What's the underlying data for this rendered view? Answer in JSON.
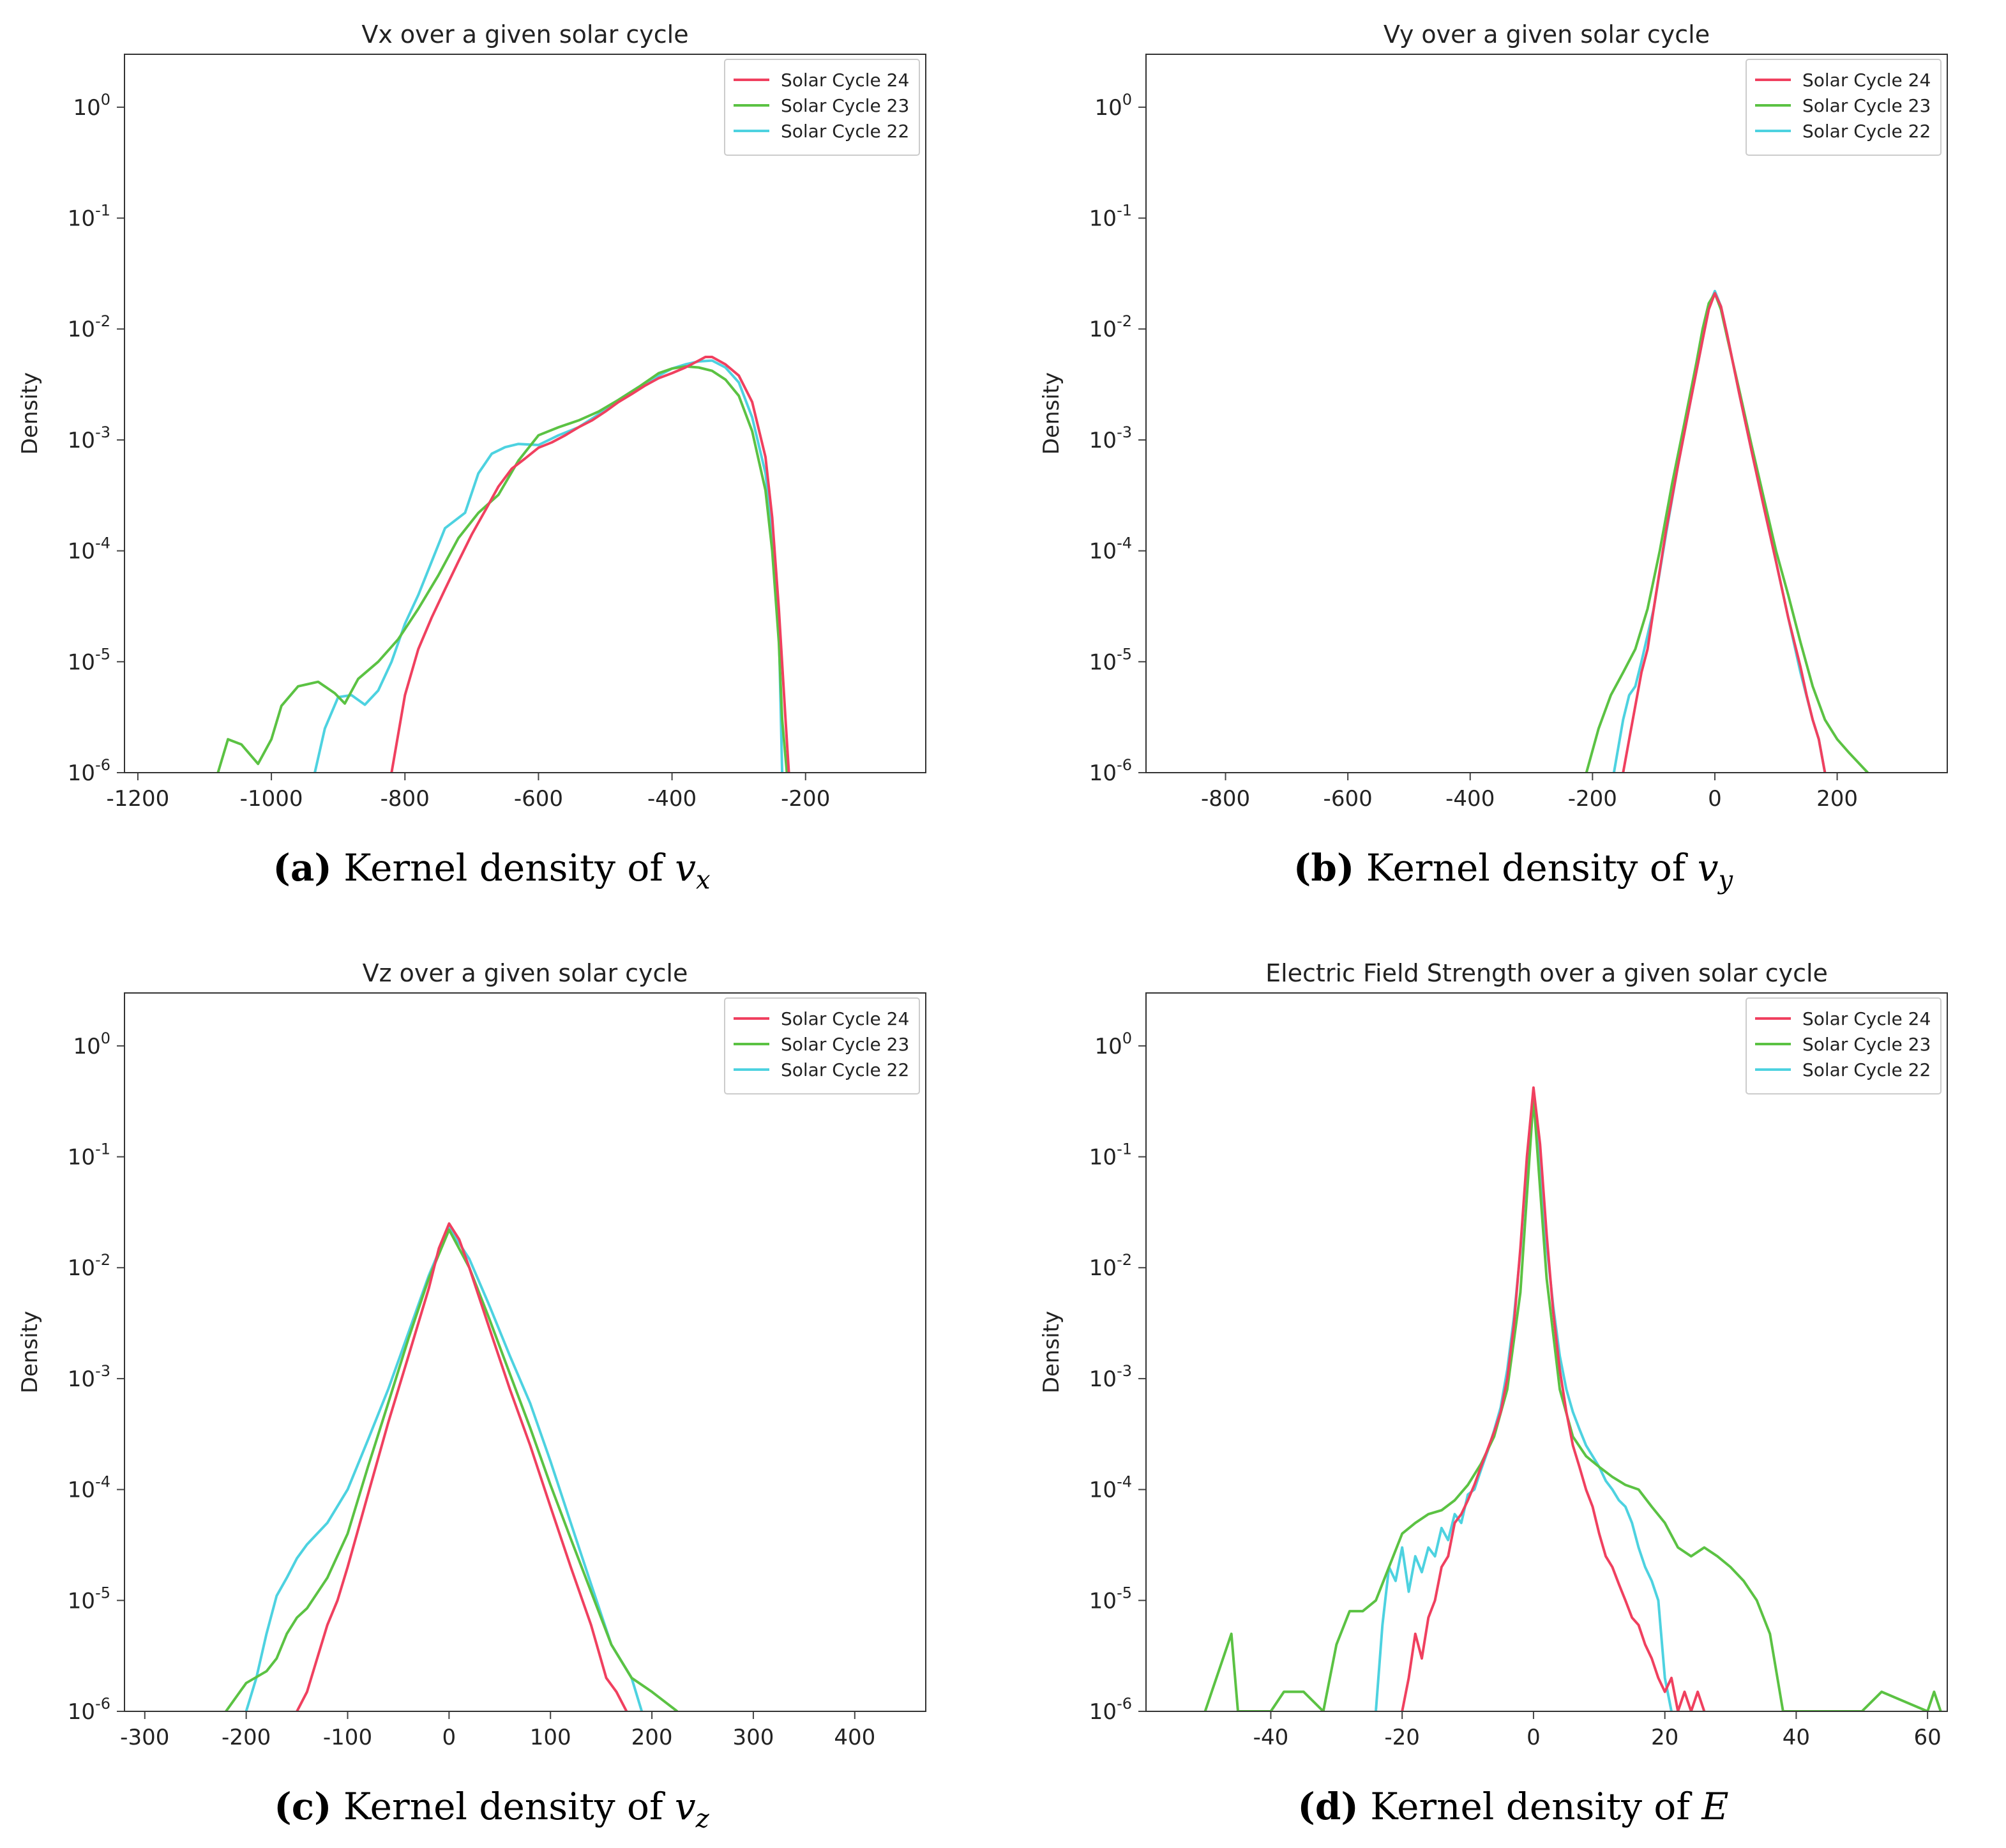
{
  "colors": {
    "sc24": "#f0405f",
    "sc23": "#5bc243",
    "sc22": "#4dd2e0"
  },
  "chart_data": [
    {
      "type": "line",
      "id": "a",
      "title": "Vx over a given solar cycle",
      "xlabel": "",
      "ylabel": "Density",
      "yscale": "log",
      "ylim": [
        1e-06,
        3
      ],
      "xlim": [
        -1220,
        -20
      ],
      "xticks": [
        -1200,
        -1000,
        -800,
        -600,
        -400,
        -200
      ],
      "xtick_labels": [
        "-1200",
        "-1000",
        "-800",
        "-600",
        "-400",
        "-200"
      ],
      "legend": [
        "Solar Cycle 24",
        "Solar Cycle 23",
        "Solar Cycle 22"
      ],
      "legend_position": "top-right",
      "caption": {
        "label": "(a)",
        "text": " Kernel density of ",
        "var": "v",
        "sub": "x"
      },
      "series": [
        {
          "name": "Solar Cycle 24",
          "x": [
            -820,
            -800,
            -780,
            -760,
            -740,
            -720,
            -700,
            -680,
            -660,
            -640,
            -620,
            -600,
            -580,
            -560,
            -540,
            -520,
            -500,
            -480,
            -460,
            -440,
            -420,
            -400,
            -380,
            -360,
            -350,
            -340,
            -320,
            -300,
            -280,
            -260,
            -250,
            -240,
            -230,
            -225
          ],
          "y": [
            1e-06,
            5e-06,
            1.3e-05,
            2.5e-05,
            4.5e-05,
            8e-05,
            0.00014,
            0.00023,
            0.00038,
            0.00055,
            0.00068,
            0.00085,
            0.00095,
            0.0011,
            0.0013,
            0.0015,
            0.0018,
            0.0022,
            0.0026,
            0.0031,
            0.0036,
            0.004,
            0.0045,
            0.0052,
            0.0056,
            0.0056,
            0.0048,
            0.0038,
            0.0022,
            0.0007,
            0.0002,
            3e-05,
            3e-06,
            1e-06
          ]
        },
        {
          "name": "Solar Cycle 23",
          "x": [
            -1080,
            -1065,
            -1045,
            -1020,
            -1000,
            -985,
            -960,
            -930,
            -905,
            -890,
            -870,
            -840,
            -810,
            -780,
            -750,
            -720,
            -690,
            -660,
            -630,
            -600,
            -570,
            -540,
            -510,
            -480,
            -450,
            -420,
            -400,
            -380,
            -360,
            -340,
            -320,
            -300,
            -280,
            -260,
            -250,
            -240,
            -235,
            -228
          ],
          "y": [
            1e-06,
            2e-06,
            1.8e-06,
            1.2e-06,
            2e-06,
            4e-06,
            6e-06,
            6.6e-06,
            5.2e-06,
            4.2e-06,
            7e-06,
            1e-05,
            1.6e-05,
            3e-05,
            6e-05,
            0.00013,
            0.00022,
            0.00032,
            0.00065,
            0.0011,
            0.0013,
            0.0015,
            0.0018,
            0.0023,
            0.003,
            0.004,
            0.0044,
            0.0046,
            0.0045,
            0.0042,
            0.0035,
            0.0025,
            0.0012,
            0.00035,
            0.0001,
            1.5e-05,
            3e-06,
            1e-06
          ]
        },
        {
          "name": "Solar Cycle 22",
          "x": [
            -935,
            -920,
            -900,
            -880,
            -860,
            -840,
            -820,
            -800,
            -780,
            -760,
            -740,
            -710,
            -690,
            -670,
            -650,
            -630,
            -600,
            -570,
            -540,
            -510,
            -480,
            -450,
            -420,
            -400,
            -380,
            -360,
            -340,
            -320,
            -300,
            -280,
            -260,
            -250,
            -240,
            -235
          ],
          "y": [
            1e-06,
            2.5e-06,
            4.8e-06,
            5e-06,
            4.1e-06,
            5.5e-06,
            1e-05,
            2.2e-05,
            4e-05,
            8e-05,
            0.00016,
            0.00022,
            0.0005,
            0.00075,
            0.00086,
            0.00092,
            0.0009,
            0.0011,
            0.0013,
            0.0017,
            0.0023,
            0.003,
            0.0038,
            0.0044,
            0.0048,
            0.0051,
            0.0052,
            0.0045,
            0.0033,
            0.0016,
            0.0005,
            0.00015,
            2e-05,
            1e-06
          ]
        }
      ]
    },
    {
      "type": "line",
      "id": "b",
      "title": "Vy over a given solar cycle",
      "xlabel": "",
      "ylabel": "Density",
      "yscale": "log",
      "ylim": [
        1e-06,
        3
      ],
      "xlim": [
        -930,
        380
      ],
      "xticks": [
        -800,
        -600,
        -400,
        -200,
        0,
        200
      ],
      "xtick_labels": [
        "-800",
        "-600",
        "-400",
        "-200",
        "0",
        "200"
      ],
      "legend": [
        "Solar Cycle 24",
        "Solar Cycle 23",
        "Solar Cycle 22"
      ],
      "legend_position": "top-right",
      "caption": {
        "label": "(b)",
        "text": " Kernel density of ",
        "var": "v",
        "sub": "y"
      },
      "series": [
        {
          "name": "Solar Cycle 24",
          "x": [
            -150,
            -140,
            -130,
            -120,
            -110,
            -100,
            -80,
            -60,
            -40,
            -20,
            -10,
            0,
            10,
            20,
            40,
            60,
            80,
            100,
            120,
            140,
            150,
            160,
            170,
            180
          ],
          "y": [
            1e-06,
            2e-06,
            4e-06,
            8e-06,
            1.3e-05,
            3e-05,
            0.00015,
            0.0006,
            0.0022,
            0.008,
            0.015,
            0.021,
            0.016,
            0.009,
            0.0026,
            0.0008,
            0.00025,
            8e-05,
            2.5e-05,
            9e-06,
            5e-06,
            3e-06,
            2e-06,
            1e-06
          ]
        },
        {
          "name": "Solar Cycle 23",
          "x": [
            -210,
            -190,
            -170,
            -150,
            -130,
            -110,
            -90,
            -70,
            -50,
            -30,
            -20,
            -10,
            0,
            10,
            20,
            40,
            60,
            80,
            100,
            120,
            140,
            160,
            180,
            200,
            220,
            250
          ],
          "y": [
            1e-06,
            2.5e-06,
            5e-06,
            8e-06,
            1.3e-05,
            3e-05,
            0.0001,
            0.0004,
            0.0014,
            0.005,
            0.01,
            0.017,
            0.021,
            0.015,
            0.0085,
            0.0028,
            0.0009,
            0.0003,
            0.0001,
            4e-05,
            1.5e-05,
            6e-06,
            3e-06,
            2e-06,
            1.5e-06,
            1e-06
          ]
        },
        {
          "name": "Solar Cycle 22",
          "x": [
            -165,
            -150,
            -140,
            -130,
            -120,
            -100,
            -80,
            -60,
            -40,
            -20,
            -10,
            0,
            10,
            20,
            40,
            60,
            80,
            100,
            120,
            140,
            160,
            170,
            180
          ],
          "y": [
            1e-06,
            3e-06,
            5e-06,
            6e-06,
            1e-05,
            3e-05,
            0.00014,
            0.0006,
            0.0022,
            0.008,
            0.016,
            0.022,
            0.016,
            0.009,
            0.0026,
            0.0008,
            0.00025,
            8e-05,
            2.5e-05,
            8e-06,
            3e-06,
            2e-06,
            1e-06
          ]
        }
      ]
    },
    {
      "type": "line",
      "id": "c",
      "title": "Vz over a given solar cycle",
      "xlabel": "",
      "ylabel": "Density",
      "yscale": "log",
      "ylim": [
        1e-06,
        3
      ],
      "xlim": [
        -320,
        470
      ],
      "xticks": [
        -300,
        -200,
        -100,
        0,
        100,
        200,
        300,
        400
      ],
      "xtick_labels": [
        "-300",
        "-200",
        "-100",
        "0",
        "100",
        "200",
        "300",
        "400"
      ],
      "legend": [
        "Solar Cycle 24",
        "Solar Cycle 23",
        "Solar Cycle 22"
      ],
      "legend_position": "top-right",
      "caption": {
        "label": "(c)",
        "text": " Kernel density of ",
        "var": "v",
        "sub": "z"
      },
      "series": [
        {
          "name": "Solar Cycle 24",
          "x": [
            -150,
            -140,
            -130,
            -120,
            -110,
            -100,
            -80,
            -60,
            -40,
            -20,
            -10,
            0,
            10,
            20,
            40,
            60,
            80,
            100,
            120,
            140,
            155,
            165,
            175
          ],
          "y": [
            1e-06,
            1.5e-06,
            3e-06,
            6e-06,
            1e-05,
            2e-05,
            9e-05,
            0.0004,
            0.0016,
            0.0065,
            0.015,
            0.025,
            0.018,
            0.01,
            0.0028,
            0.0008,
            0.00025,
            7e-05,
            2e-05,
            6e-06,
            2e-06,
            1.5e-06,
            1e-06
          ]
        },
        {
          "name": "Solar Cycle 23",
          "x": [
            -220,
            -200,
            -180,
            -170,
            -160,
            -150,
            -140,
            -120,
            -100,
            -80,
            -60,
            -40,
            -20,
            0,
            20,
            40,
            60,
            80,
            100,
            120,
            140,
            160,
            180,
            200,
            225
          ],
          "y": [
            1e-06,
            1.8e-06,
            2.3e-06,
            3e-06,
            5e-06,
            7e-06,
            8.5e-06,
            1.6e-05,
            4e-05,
            0.00016,
            0.0006,
            0.0023,
            0.008,
            0.022,
            0.01,
            0.0034,
            0.0011,
            0.00036,
            0.00011,
            3.6e-05,
            1.2e-05,
            4e-06,
            2e-06,
            1.5e-06,
            1e-06
          ]
        },
        {
          "name": "Solar Cycle 22",
          "x": [
            -200,
            -190,
            -180,
            -170,
            -160,
            -150,
            -140,
            -120,
            -100,
            -80,
            -60,
            -40,
            -20,
            0,
            20,
            40,
            60,
            80,
            100,
            120,
            140,
            160,
            180,
            190
          ],
          "y": [
            1e-06,
            2e-06,
            5e-06,
            1.1e-05,
            1.6e-05,
            2.4e-05,
            3.2e-05,
            5e-05,
            0.0001,
            0.00028,
            0.0008,
            0.0026,
            0.0085,
            0.023,
            0.012,
            0.0045,
            0.0016,
            0.0006,
            0.00018,
            5e-05,
            1.4e-05,
            4e-06,
            2e-06,
            1e-06
          ]
        }
      ]
    },
    {
      "type": "line",
      "id": "d",
      "title": "Electric Field Strength over a given solar cycle",
      "xlabel": "",
      "ylabel": "Density",
      "yscale": "log",
      "ylim": [
        1e-06,
        3
      ],
      "xlim": [
        -59,
        63
      ],
      "xticks": [
        -40,
        -20,
        0,
        20,
        40,
        60
      ],
      "xtick_labels": [
        "-40",
        "-20",
        "0",
        "20",
        "40",
        "60"
      ],
      "legend": [
        "Solar Cycle 24",
        "Solar Cycle 23",
        "Solar Cycle 22"
      ],
      "legend_position": "top-right",
      "caption": {
        "label": "(d)",
        "text": " Kernel density of ",
        "var": "E",
        "sub": ""
      },
      "series": [
        {
          "name": "Solar Cycle 24",
          "x": [
            -20,
            -19,
            -18,
            -17,
            -16,
            -15,
            -14,
            -13,
            -12,
            -11,
            -10,
            -9,
            -8,
            -7,
            -6,
            -5,
            -4,
            -3,
            -2,
            -1,
            0,
            1,
            2,
            3,
            4,
            5,
            6,
            7,
            8,
            9,
            10,
            11,
            12,
            13,
            14,
            15,
            16,
            17,
            18,
            19,
            20,
            21,
            22,
            23,
            24,
            25,
            26
          ],
          "y": [
            1e-06,
            2e-06,
            5e-06,
            3e-06,
            7e-06,
            1e-05,
            2e-05,
            2.5e-05,
            5e-05,
            6e-05,
            8e-05,
            0.00011,
            0.00016,
            0.00023,
            0.00033,
            0.0005,
            0.001,
            0.003,
            0.015,
            0.1,
            0.42,
            0.13,
            0.02,
            0.004,
            0.0012,
            0.0005,
            0.00025,
            0.00016,
            0.0001,
            7e-05,
            4e-05,
            2.5e-05,
            2e-05,
            1.4e-05,
            1e-05,
            7e-06,
            6e-06,
            4e-06,
            3e-06,
            2e-06,
            1.5e-06,
            2e-06,
            1e-06,
            1.5e-06,
            1e-06,
            1.5e-06,
            1e-06
          ]
        },
        {
          "name": "Solar Cycle 23",
          "x": [
            -50,
            -49,
            -46,
            -45,
            -44,
            -40,
            -38,
            -35,
            -32,
            -30,
            -28,
            -26,
            -24,
            -22,
            -20,
            -18,
            -16,
            -14,
            -12,
            -10,
            -8,
            -6,
            -4,
            -2,
            0,
            2,
            4,
            6,
            8,
            10,
            12,
            14,
            16,
            18,
            20,
            22,
            24,
            26,
            28,
            30,
            32,
            34,
            36,
            38,
            40,
            42,
            50,
            53,
            60,
            61,
            62
          ],
          "y": [
            1e-06,
            1.5e-06,
            5e-06,
            1e-06,
            1e-06,
            1e-06,
            1.5e-06,
            1.5e-06,
            1e-06,
            4e-06,
            8e-06,
            8e-06,
            1e-05,
            2e-05,
            4e-05,
            5e-05,
            6e-05,
            6.5e-05,
            8e-05,
            0.00011,
            0.00017,
            0.0003,
            0.0008,
            0.006,
            0.34,
            0.008,
            0.0008,
            0.0003,
            0.0002,
            0.00016,
            0.00013,
            0.00011,
            0.0001,
            7e-05,
            5e-05,
            3e-05,
            2.5e-05,
            3e-05,
            2.5e-05,
            2e-05,
            1.5e-05,
            1e-05,
            5e-06,
            1e-06,
            1e-06,
            1e-06,
            1e-06,
            1.5e-06,
            1e-06,
            1.5e-06,
            1e-06
          ]
        },
        {
          "name": "Solar Cycle 22",
          "x": [
            -24,
            -23,
            -22,
            -21,
            -20,
            -19,
            -18,
            -17,
            -16,
            -15,
            -14,
            -13,
            -12,
            -11,
            -10,
            -9,
            -8,
            -7,
            -6,
            -5,
            -4,
            -3,
            -2,
            -1,
            0,
            1,
            2,
            3,
            4,
            5,
            6,
            7,
            8,
            9,
            10,
            11,
            12,
            13,
            14,
            15,
            16,
            17,
            18,
            19,
            20,
            21
          ],
          "y": [
            1e-06,
            6e-06,
            2e-05,
            1.5e-05,
            3e-05,
            1.2e-05,
            2.5e-05,
            1.8e-05,
            3e-05,
            2.5e-05,
            4.5e-05,
            3.5e-05,
            6e-05,
            5e-05,
            9e-05,
            0.0001,
            0.00015,
            0.00022,
            0.00034,
            0.00055,
            0.0012,
            0.0035,
            0.014,
            0.09,
            0.34,
            0.08,
            0.016,
            0.0045,
            0.0016,
            0.0008,
            0.0005,
            0.00035,
            0.00025,
            0.0002,
            0.00016,
            0.00012,
            0.0001,
            8e-05,
            7e-05,
            5e-05,
            3e-05,
            2e-05,
            1.5e-05,
            1e-05,
            2e-06,
            1e-06
          ]
        }
      ]
    }
  ]
}
